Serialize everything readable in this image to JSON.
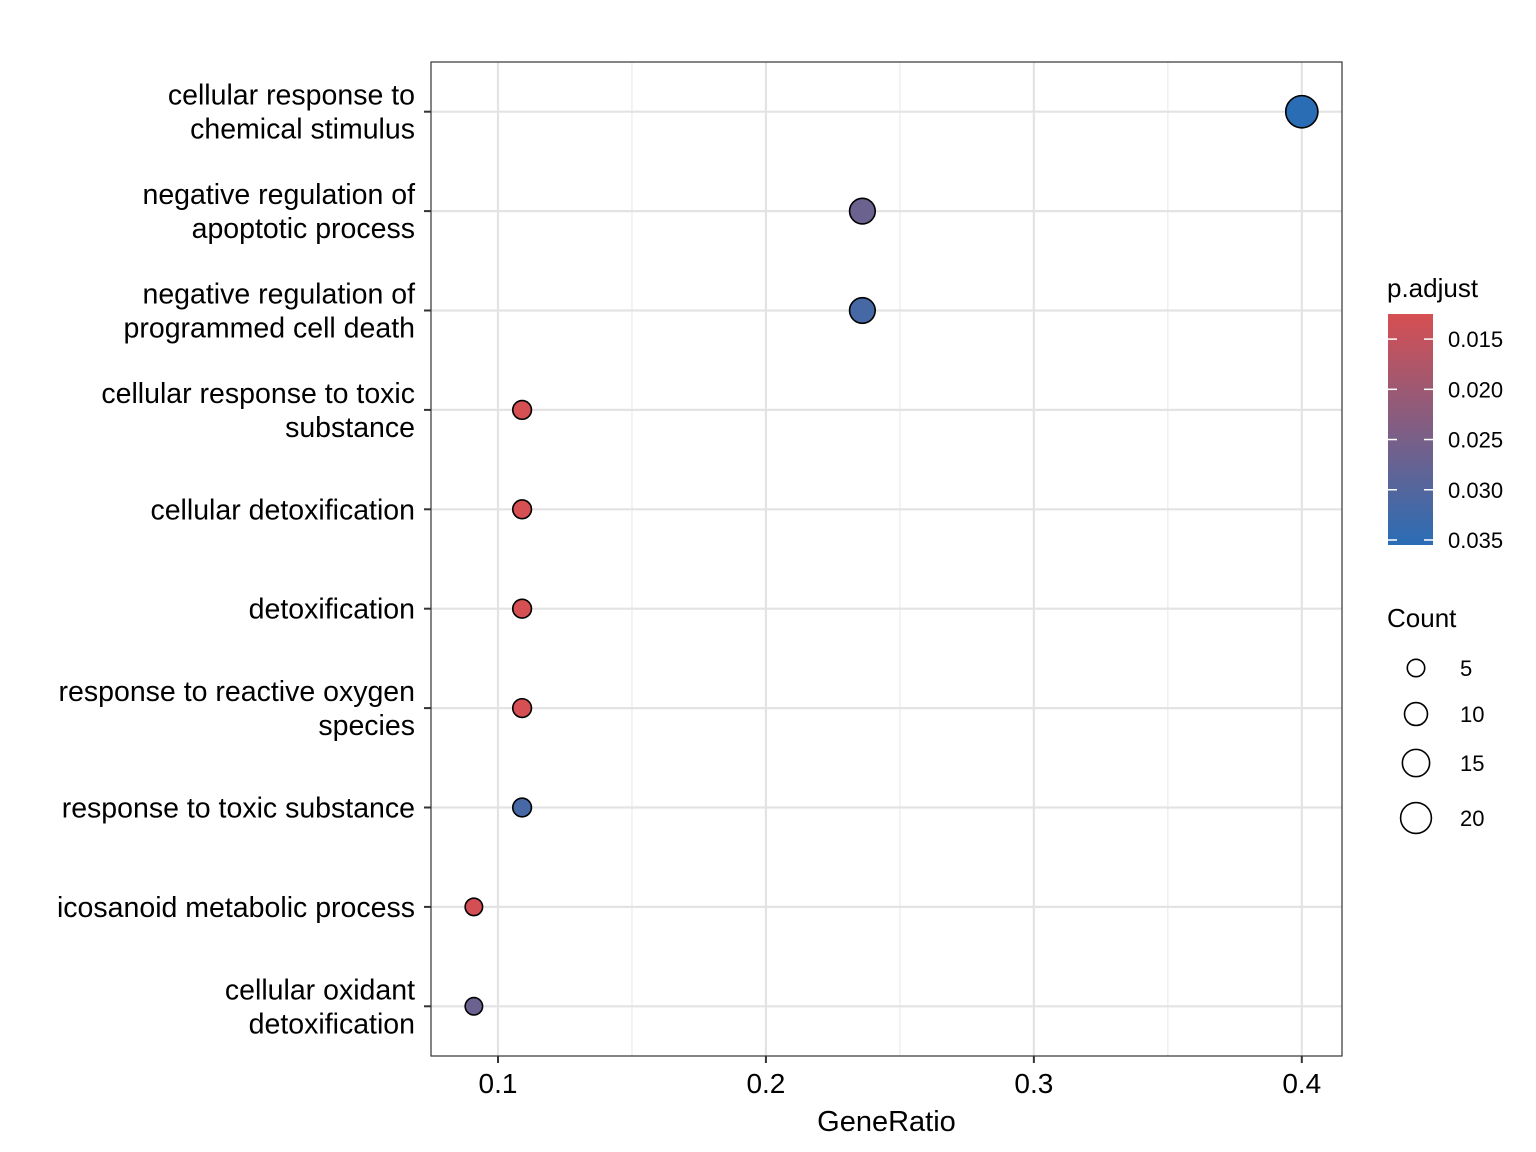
{
  "chart_data": {
    "type": "scatter",
    "xlabel": "GeneRatio",
    "ylabel": "",
    "title": "",
    "xlim": [
      0.075,
      0.415
    ],
    "x_ticks": [
      "0.1",
      "0.2",
      "0.3",
      "0.4"
    ],
    "x_tick_values": [
      0.1,
      0.2,
      0.3,
      0.4
    ],
    "x_minor_values": [
      0.15,
      0.25,
      0.35
    ],
    "grid": true,
    "categories": [
      [
        "cellular response to",
        "chemical stimulus"
      ],
      [
        "negative regulation of",
        "apoptotic process"
      ],
      [
        "negative regulation of",
        "programmed cell death"
      ],
      [
        "cellular response to toxic",
        "substance"
      ],
      [
        "cellular detoxification"
      ],
      [
        "detoxification"
      ],
      [
        "response to reactive oxygen",
        "species"
      ],
      [
        "response to toxic substance"
      ],
      [
        "icosanoid metabolic process"
      ],
      [
        "cellular oxidant",
        "detoxification"
      ]
    ],
    "points": [
      {
        "x": 0.4,
        "count": 22,
        "p_adjust": 0.0355
      },
      {
        "x": 0.236,
        "count": 13,
        "p_adjust": 0.0268
      },
      {
        "x": 0.236,
        "count": 13,
        "p_adjust": 0.0318
      },
      {
        "x": 0.109,
        "count": 6,
        "p_adjust": 0.0125
      },
      {
        "x": 0.109,
        "count": 6,
        "p_adjust": 0.0125
      },
      {
        "x": 0.109,
        "count": 6,
        "p_adjust": 0.0125
      },
      {
        "x": 0.109,
        "count": 6,
        "p_adjust": 0.0125
      },
      {
        "x": 0.109,
        "count": 6,
        "p_adjust": 0.0318
      },
      {
        "x": 0.091,
        "count": 5,
        "p_adjust": 0.0128
      },
      {
        "x": 0.091,
        "count": 5,
        "p_adjust": 0.0268
      }
    ],
    "color_legend": {
      "title": "p.adjust",
      "low_color": "#d64f52",
      "high_color": "#2a6db5",
      "range": [
        0.0125,
        0.0355
      ],
      "ticks": [
        "0.015",
        "0.020",
        "0.025",
        "0.030",
        "0.035"
      ],
      "tick_values": [
        0.015,
        0.02,
        0.025,
        0.03,
        0.035
      ]
    },
    "size_legend": {
      "title": "Count",
      "labels": [
        "5",
        "10",
        "15",
        "20"
      ],
      "values": [
        5,
        10,
        15,
        20
      ]
    }
  }
}
